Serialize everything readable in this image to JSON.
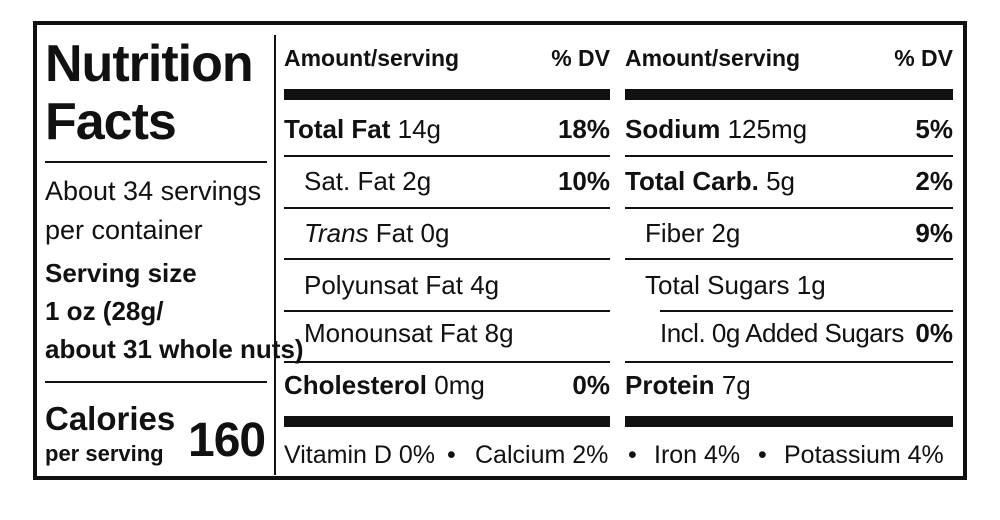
{
  "title_line1": "Nutrition",
  "title_line2": "Facts",
  "servings_line1": "About 34 servings",
  "servings_line2": "per container",
  "serving_size_label": "Serving size",
  "serving_size_line1": "1 oz (28g/",
  "serving_size_line2": "about 31 whole nuts)",
  "calories_label": "Calories",
  "calories_sub": "per serving",
  "calories_value": "160",
  "header": {
    "amount": "Amount/serving",
    "dv": "% DV"
  },
  "left_column": [
    {
      "bold": "Total Fat",
      "amount": "14g",
      "dv": "18%"
    },
    {
      "label": "Sat. Fat 2g",
      "dv": "10%"
    },
    {
      "italic": "Trans",
      "label": "Fat 0g",
      "dv": ""
    },
    {
      "label": "Polyunsat Fat 4g",
      "dv": ""
    },
    {
      "label": "Monounsat Fat 8g",
      "dv": ""
    },
    {
      "bold": "Cholesterol",
      "amount": "0mg",
      "dv": "0%"
    }
  ],
  "right_column": [
    {
      "bold": "Sodium",
      "amount": "125mg",
      "dv": "5%"
    },
    {
      "bold": "Total Carb.",
      "amount": "5g",
      "dv": "2%"
    },
    {
      "label": "Fiber 2g",
      "dv": "9%"
    },
    {
      "label": "Total Sugars 1g",
      "dv": ""
    },
    {
      "label": "Incl. 0g Added Sugars",
      "dv": "0%"
    },
    {
      "bold": "Protein",
      "amount": "7g",
      "dv": ""
    }
  ],
  "footer": {
    "vitamin_d": "Vitamin D 0%",
    "calcium": "Calcium 2%",
    "iron": "Iron 4%",
    "potassium": "Potassium 4%",
    "bullet": "•"
  }
}
